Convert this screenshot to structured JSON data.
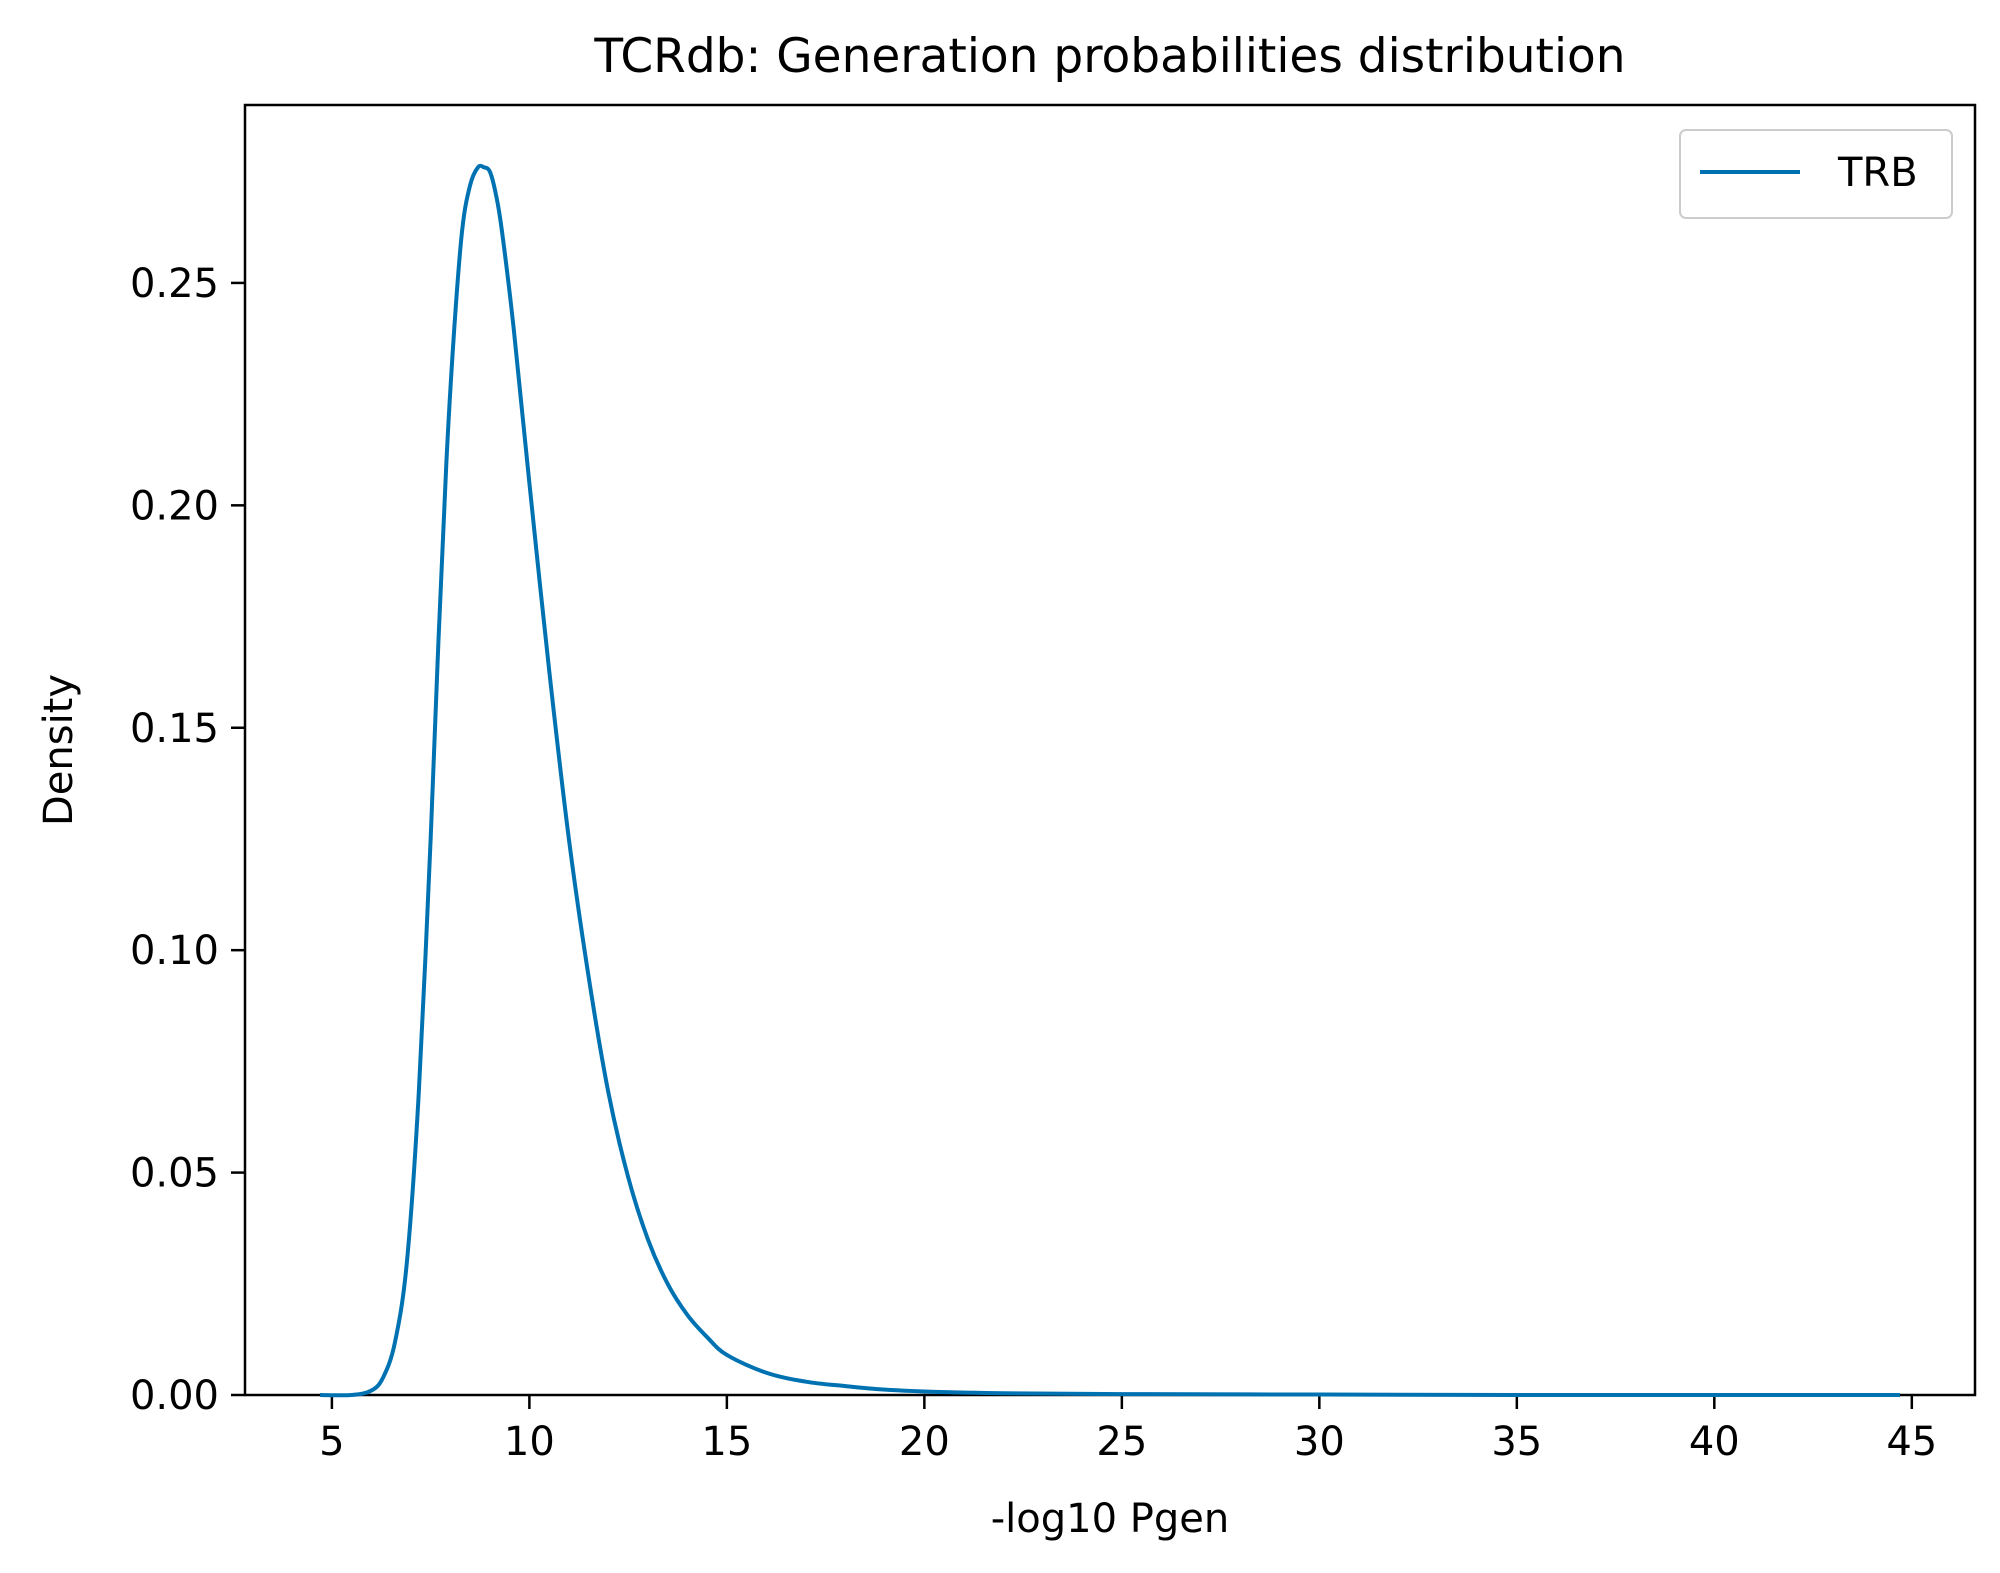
{
  "chart_data": {
    "type": "line",
    "title": "TCRdb: Generation probabilities distribution",
    "xlabel": "-log10 Pgen",
    "ylabel": "Density",
    "xlim": [
      2.8,
      46.6
    ],
    "ylim": [
      0,
      0.29
    ],
    "xticks": [
      5,
      10,
      15,
      20,
      25,
      30,
      35,
      40,
      45
    ],
    "xtick_labels": [
      "5",
      "10",
      "15",
      "20",
      "25",
      "30",
      "35",
      "40",
      "45"
    ],
    "yticks": [
      0,
      0.05,
      0.1,
      0.15,
      0.2,
      0.25
    ],
    "ytick_labels": [
      "0.00",
      "0.05",
      "0.10",
      "0.15",
      "0.20",
      "0.25"
    ],
    "grid": false,
    "legend_position": "upper right",
    "series": [
      {
        "name": "TRB",
        "color": "#0072b2",
        "x": [
          4.7,
          5.5,
          6.0,
          6.3,
          6.6,
          6.9,
          7.2,
          7.5,
          7.7,
          7.9,
          8.1,
          8.3,
          8.5,
          8.7,
          8.85,
          9.0,
          9.15,
          9.3,
          9.6,
          10.0,
          10.5,
          11.0,
          11.5,
          12.0,
          12.5,
          13.0,
          13.5,
          14.0,
          14.5,
          15.0,
          16.0,
          17.0,
          18.0,
          19.0,
          20.0,
          22.0,
          25.0,
          30.0,
          35.0,
          40.0,
          44.7
        ],
        "y": [
          0.0,
          0.0,
          0.001,
          0.004,
          0.012,
          0.03,
          0.068,
          0.125,
          0.17,
          0.21,
          0.24,
          0.262,
          0.272,
          0.276,
          0.276,
          0.275,
          0.27,
          0.262,
          0.24,
          0.205,
          0.163,
          0.125,
          0.094,
          0.068,
          0.049,
          0.035,
          0.025,
          0.018,
          0.013,
          0.009,
          0.005,
          0.003,
          0.002,
          0.0012,
          0.0008,
          0.0004,
          0.0002,
          0.0001,
          0.0,
          0.0,
          0.0
        ]
      }
    ]
  }
}
